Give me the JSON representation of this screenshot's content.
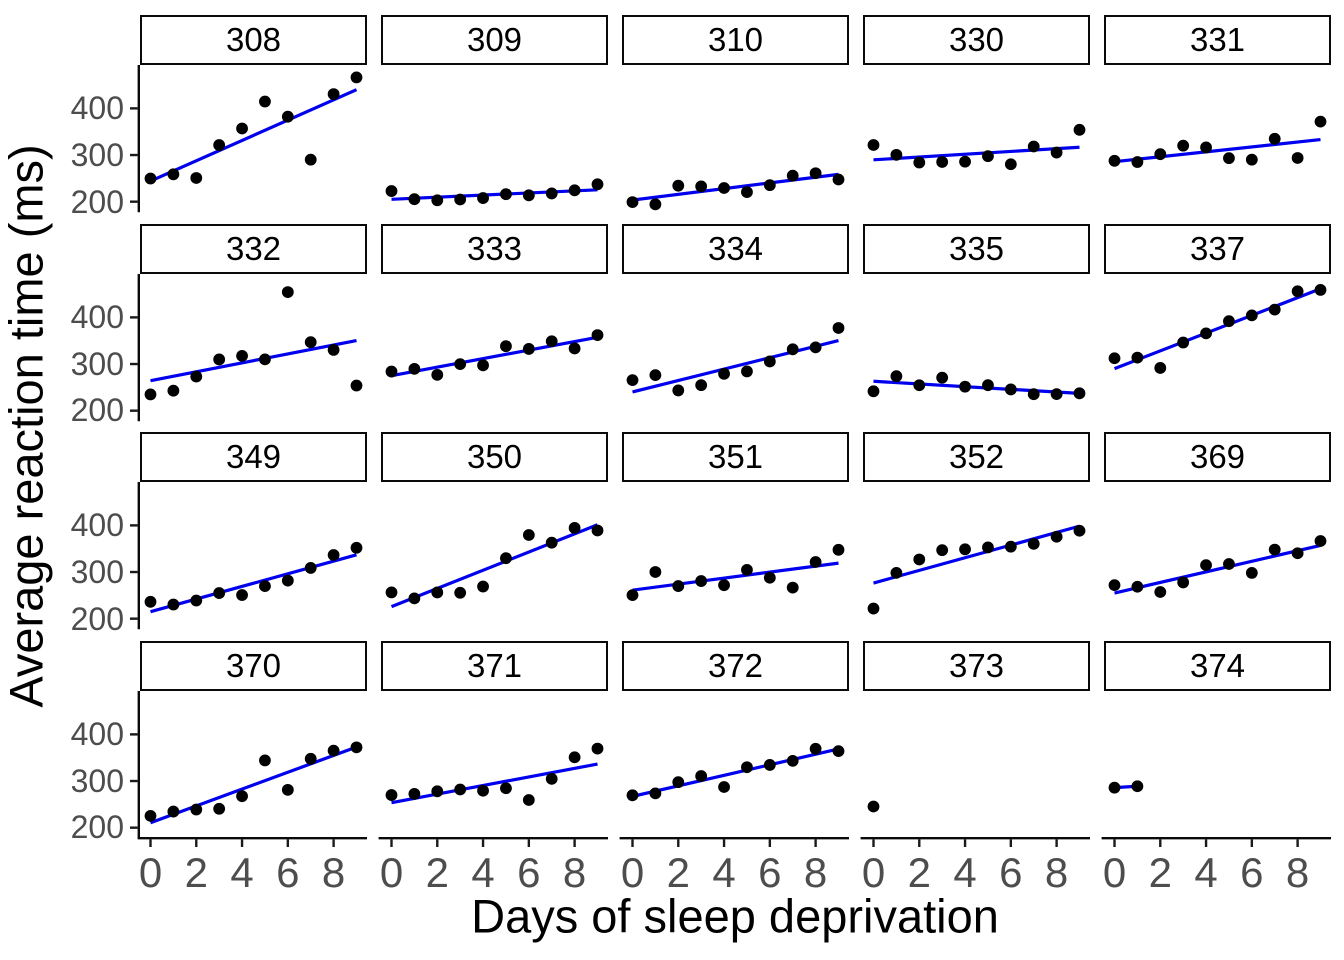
{
  "figure": {
    "x_title": "Days of sleep deprivation",
    "y_title": "Average reaction time (ms)",
    "colors": {
      "background": "#ffffff",
      "regression_line": "#0000ee",
      "point": "#000000",
      "axis_line": "#0a0a0a",
      "tick_mark": "#1a1a1a",
      "tick_label": "#4d4d4d",
      "strip_border": "#0a0a0a",
      "strip_background": "#ffffff",
      "strip_text": "#000000"
    }
  },
  "chart_data": {
    "type": "scatter",
    "title": "",
    "xlabel": "Days of sleep deprivation",
    "ylabel": "Average reaction time (ms)",
    "grid": false,
    "legend": "none",
    "smooth": "lm",
    "se": false,
    "x_ticks": [
      0,
      2,
      4,
      6,
      8
    ],
    "y_ticks": [
      200,
      300,
      400
    ],
    "x_range": [
      -0.45,
      9.45
    ],
    "y_range": [
      180,
      493
    ],
    "facet_layout": {
      "rows": 4,
      "cols": 5
    },
    "facets": [
      {
        "label": "308",
        "x": [
          0,
          1,
          2,
          3,
          4,
          5,
          6,
          7,
          8,
          9
        ],
        "y": [
          249.6,
          258.7,
          250.8,
          321.4,
          356.9,
          414.7,
          382.2,
          290.1,
          430.6,
          466.4
        ]
      },
      {
        "label": "309",
        "x": [
          0,
          1,
          2,
          3,
          4,
          5,
          6,
          7,
          8,
          9
        ],
        "y": [
          222.7,
          205.3,
          203.0,
          204.7,
          207.7,
          216.0,
          213.6,
          217.7,
          224.3,
          237.3
        ]
      },
      {
        "label": "310",
        "x": [
          0,
          1,
          2,
          3,
          4,
          5,
          6,
          7,
          8,
          9
        ],
        "y": [
          199.1,
          194.3,
          234.3,
          232.8,
          229.3,
          220.5,
          235.4,
          255.8,
          261.0,
          247.5
        ]
      },
      {
        "label": "330",
        "x": [
          0,
          1,
          2,
          3,
          4,
          5,
          6,
          7,
          8,
          9
        ],
        "y": [
          321.5,
          300.4,
          283.9,
          285.1,
          285.8,
          297.6,
          280.2,
          318.3,
          305.3,
          354.0
        ]
      },
      {
        "label": "331",
        "x": [
          0,
          1,
          2,
          3,
          4,
          5,
          6,
          7,
          8,
          9
        ],
        "y": [
          287.6,
          285.0,
          301.8,
          320.1,
          316.3,
          293.3,
          290.1,
          334.8,
          293.7,
          371.6
        ]
      },
      {
        "label": "332",
        "x": [
          0,
          1,
          2,
          3,
          4,
          5,
          6,
          7,
          8,
          9
        ],
        "y": [
          234.9,
          242.8,
          273.0,
          309.8,
          317.5,
          310.0,
          454.2,
          346.8,
          330.3,
          253.9
        ]
      },
      {
        "label": "333",
        "x": [
          0,
          1,
          2,
          3,
          4,
          5,
          6,
          7,
          8,
          9
        ],
        "y": [
          283.8,
          289.6,
          276.8,
          299.8,
          297.2,
          338.2,
          332.3,
          348.8,
          333.4,
          362.0
        ]
      },
      {
        "label": "334",
        "x": [
          0,
          1,
          2,
          3,
          4,
          5,
          6,
          7,
          8,
          9
        ],
        "y": [
          265.5,
          276.2,
          243.4,
          254.7,
          279.0,
          284.2,
          305.5,
          331.5,
          335.7,
          377.3
        ]
      },
      {
        "label": "335",
        "x": [
          0,
          1,
          2,
          3,
          4,
          5,
          6,
          7,
          8,
          9
        ],
        "y": [
          241.6,
          273.9,
          254.5,
          270.8,
          251.5,
          254.6,
          245.5,
          235.3,
          235.5,
          237.2
        ]
      },
      {
        "label": "337",
        "x": [
          0,
          1,
          2,
          3,
          4,
          5,
          6,
          7,
          8,
          9
        ],
        "y": [
          312.4,
          313.8,
          291.6,
          346.1,
          365.7,
          391.8,
          404.3,
          416.7,
          455.9,
          458.9
        ]
      },
      {
        "label": "349",
        "x": [
          0,
          1,
          2,
          3,
          4,
          5,
          6,
          7,
          8,
          9
        ],
        "y": [
          236.1,
          230.3,
          238.9,
          254.9,
          250.7,
          269.8,
          281.6,
          308.8,
          336.5,
          352.0
        ]
      },
      {
        "label": "350",
        "x": [
          0,
          1,
          2,
          3,
          4,
          5,
          6,
          7,
          8,
          9
        ],
        "y": [
          256.3,
          243.5,
          256.2,
          255.5,
          268.9,
          329.7,
          379.4,
          362.9,
          394.5,
          389.1
        ]
      },
      {
        "label": "351",
        "x": [
          0,
          1,
          2,
          3,
          4,
          5,
          6,
          7,
          8,
          9
        ],
        "y": [
          250.5,
          300.1,
          269.9,
          280.6,
          271.8,
          304.6,
          287.7,
          266.6,
          321.5,
          347.6
        ]
      },
      {
        "label": "352",
        "x": [
          0,
          1,
          2,
          3,
          4,
          5,
          6,
          7,
          8,
          9
        ],
        "y": [
          221.7,
          298.2,
          326.9,
          346.9,
          348.7,
          352.8,
          354.4,
          360.4,
          375.6,
          388.5
        ]
      },
      {
        "label": "369",
        "x": [
          0,
          1,
          2,
          3,
          4,
          5,
          6,
          7,
          8,
          9
        ],
        "y": [
          271.9,
          268.4,
          257.2,
          277.7,
          314.8,
          317.2,
          298.1,
          348.1,
          340.3,
          366.5
        ]
      },
      {
        "label": "370",
        "x": [
          0,
          1,
          2,
          3,
          4,
          5,
          6,
          7,
          8,
          9
        ],
        "y": [
          225.3,
          234.5,
          238.9,
          240.5,
          267.5,
          344.2,
          281.1,
          347.6,
          365.2,
          372.2
        ]
      },
      {
        "label": "371",
        "x": [
          0,
          1,
          2,
          3,
          4,
          5,
          6,
          7,
          8,
          9
        ],
        "y": [
          269.9,
          272.4,
          277.9,
          281.8,
          279.2,
          284.5,
          259.3,
          304.6,
          350.8,
          369.5
        ]
      },
      {
        "label": "372",
        "x": [
          0,
          1,
          2,
          3,
          4,
          5,
          6,
          7,
          8,
          9
        ],
        "y": [
          269.4,
          273.5,
          297.6,
          310.6,
          287.2,
          329.6,
          334.5,
          343.2,
          369.1,
          364.1
        ]
      },
      {
        "label": "373",
        "x": [
          0
        ],
        "y": [
          245.4
        ]
      },
      {
        "label": "374",
        "x": [
          0,
          1
        ],
        "y": [
          285.8,
          288.8
        ]
      }
    ]
  }
}
